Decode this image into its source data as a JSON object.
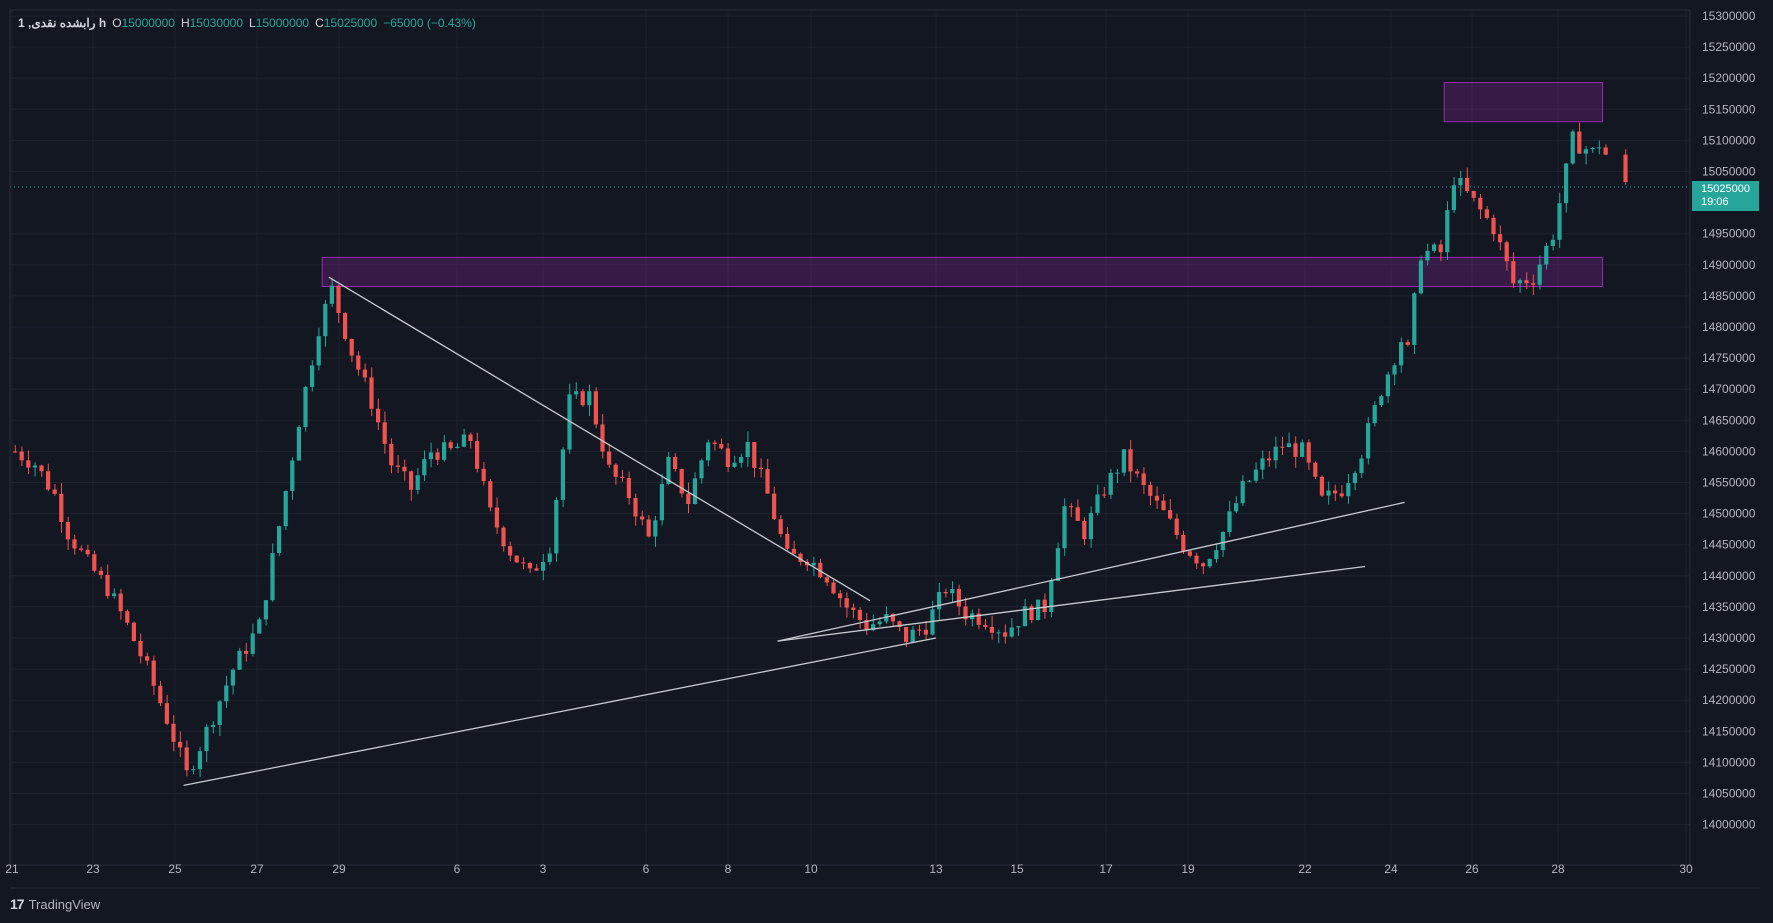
{
  "header": {
    "symbol": "1 ,رابشده نقدی h",
    "open_label": "O",
    "open": "15000000",
    "high_label": "H",
    "high": "15030000",
    "low_label": "L",
    "low": "15000000",
    "close_label": "C",
    "close": "15025000",
    "change": "−65000 (−0.43%)"
  },
  "price_tag": {
    "price": "15025000",
    "countdown": "19:06"
  },
  "brand": {
    "logo": "17",
    "name": "TradingView"
  },
  "colors": {
    "background": "#131722",
    "up": "#26a69a",
    "down": "#ef5350",
    "zone": "#9c27b0",
    "trendline": "#c7c9d1"
  },
  "chart_data": {
    "type": "candlestick",
    "x_ticks": [
      "21",
      "23",
      "25",
      "27",
      "29",
      "6",
      "3",
      "6",
      "8",
      "10",
      "13",
      "15",
      "17",
      "19",
      "22",
      "24",
      "26",
      "28",
      "30"
    ],
    "y_ticks": [
      15300000,
      15250000,
      15200000,
      15150000,
      15100000,
      15050000,
      14950000,
      14900000,
      14850000,
      14800000,
      14750000,
      14700000,
      14650000,
      14600000,
      14550000,
      14500000,
      14450000,
      14400000,
      14350000,
      14300000,
      14250000,
      14200000,
      14150000,
      14100000,
      14050000,
      14000000
    ],
    "ylim": [
      13965000,
      15305000
    ],
    "last_price": 15025000,
    "key_prices": [
      {
        "x": 0,
        "y": 14600000
      },
      {
        "x": 3,
        "y": 14580000
      },
      {
        "x": 6,
        "y": 14530000
      },
      {
        "x": 8,
        "y": 14470000
      },
      {
        "x": 11,
        "y": 14420000
      },
      {
        "x": 14,
        "y": 14380000
      },
      {
        "x": 17,
        "y": 14320000
      },
      {
        "x": 20,
        "y": 14250000
      },
      {
        "x": 23,
        "y": 14170000
      },
      {
        "x": 26,
        "y": 14080000
      },
      {
        "x": 29,
        "y": 14150000
      },
      {
        "x": 33,
        "y": 14250000
      },
      {
        "x": 37,
        "y": 14320000
      },
      {
        "x": 40,
        "y": 14480000
      },
      {
        "x": 43,
        "y": 14650000
      },
      {
        "x": 46,
        "y": 14800000
      },
      {
        "x": 48,
        "y": 14860000
      },
      {
        "x": 51,
        "y": 14760000
      },
      {
        "x": 54,
        "y": 14680000
      },
      {
        "x": 57,
        "y": 14580000
      },
      {
        "x": 60,
        "y": 14540000
      },
      {
        "x": 63,
        "y": 14600000
      },
      {
        "x": 66,
        "y": 14600000
      },
      {
        "x": 69,
        "y": 14620000
      },
      {
        "x": 72,
        "y": 14500000
      },
      {
        "x": 75,
        "y": 14440000
      },
      {
        "x": 78,
        "y": 14400000
      },
      {
        "x": 81,
        "y": 14450000
      },
      {
        "x": 84,
        "y": 14680000
      },
      {
        "x": 87,
        "y": 14690000
      },
      {
        "x": 90,
        "y": 14570000
      },
      {
        "x": 93,
        "y": 14530000
      },
      {
        "x": 96,
        "y": 14460000
      },
      {
        "x": 99,
        "y": 14580000
      },
      {
        "x": 102,
        "y": 14520000
      },
      {
        "x": 105,
        "y": 14620000
      },
      {
        "x": 108,
        "y": 14590000
      },
      {
        "x": 111,
        "y": 14610000
      },
      {
        "x": 114,
        "y": 14530000
      },
      {
        "x": 117,
        "y": 14430000
      },
      {
        "x": 120,
        "y": 14430000
      },
      {
        "x": 123,
        "y": 14400000
      },
      {
        "x": 126,
        "y": 14350000
      },
      {
        "x": 129,
        "y": 14320000
      },
      {
        "x": 132,
        "y": 14330000
      },
      {
        "x": 135,
        "y": 14300000
      },
      {
        "x": 138,
        "y": 14320000
      },
      {
        "x": 141,
        "y": 14380000
      },
      {
        "x": 144,
        "y": 14340000
      },
      {
        "x": 147,
        "y": 14330000
      },
      {
        "x": 150,
        "y": 14310000
      },
      {
        "x": 153,
        "y": 14340000
      },
      {
        "x": 156,
        "y": 14350000
      },
      {
        "x": 159,
        "y": 14510000
      },
      {
        "x": 162,
        "y": 14470000
      },
      {
        "x": 165,
        "y": 14540000
      },
      {
        "x": 168,
        "y": 14590000
      },
      {
        "x": 171,
        "y": 14540000
      },
      {
        "x": 174,
        "y": 14500000
      },
      {
        "x": 177,
        "y": 14450000
      },
      {
        "x": 180,
        "y": 14420000
      },
      {
        "x": 183,
        "y": 14470000
      },
      {
        "x": 186,
        "y": 14540000
      },
      {
        "x": 189,
        "y": 14580000
      },
      {
        "x": 192,
        "y": 14610000
      },
      {
        "x": 195,
        "y": 14600000
      },
      {
        "x": 198,
        "y": 14520000
      },
      {
        "x": 201,
        "y": 14540000
      },
      {
        "x": 204,
        "y": 14600000
      },
      {
        "x": 207,
        "y": 14700000
      },
      {
        "x": 210,
        "y": 14780000
      },
      {
        "x": 211,
        "y": 14760000
      },
      {
        "x": 213,
        "y": 14920000
      },
      {
        "x": 216,
        "y": 14920000
      },
      {
        "x": 218,
        "y": 15040000
      },
      {
        "x": 221,
        "y": 15000000
      },
      {
        "x": 224,
        "y": 14960000
      },
      {
        "x": 227,
        "y": 14870000
      },
      {
        "x": 230,
        "y": 14880000
      },
      {
        "x": 233,
        "y": 14950000
      },
      {
        "x": 236,
        "y": 15100000
      },
      {
        "x": 239,
        "y": 15080000
      },
      {
        "x": 240,
        "y": 15095000
      },
      {
        "x": 244,
        "y": 15025000
      }
    ],
    "zones": [
      {
        "price_top": 15193000,
        "price_bottom": 15130000,
        "x_start": 217,
        "x_end": 241
      },
      {
        "price_top": 14912000,
        "price_bottom": 14865000,
        "x_start": 47,
        "x_end": 241
      }
    ],
    "trendlines": [
      {
        "x1": 48,
        "y1": 14880000,
        "x2": 130,
        "y2": 14360000
      },
      {
        "x1": 26,
        "y1": 14063000,
        "x2": 140,
        "y2": 14300000
      },
      {
        "x1": 116,
        "y1": 14295000,
        "x2": 205,
        "y2": 14415000
      },
      {
        "x1": 116,
        "y1": 14295000,
        "x2": 211,
        "y2": 14518000
      }
    ]
  }
}
